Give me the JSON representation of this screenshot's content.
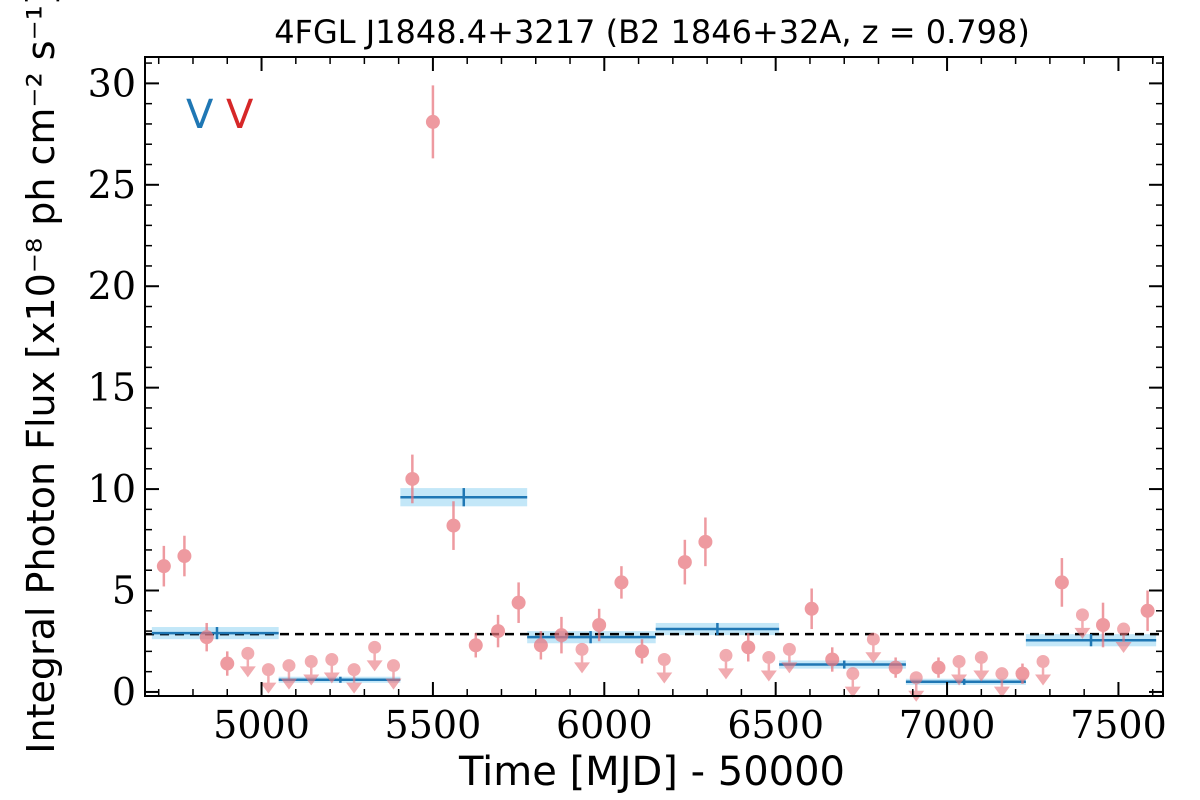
{
  "chart_data": {
    "type": "scatter",
    "title": "4FGL J1848.4+3217 (B2 1846+32A, z = 0.798)",
    "xlabel": "Time [MJD] - 50000",
    "ylabel": "Integral Photon Flux [x10⁻⁸ ph cm⁻² s⁻¹]",
    "xlim": [
      4660,
      7630
    ],
    "ylim": [
      -0.2,
      31.3
    ],
    "xticks": [
      5000,
      5500,
      6000,
      6500,
      7000,
      7500
    ],
    "yticks": [
      0,
      5,
      10,
      15,
      20,
      25,
      30
    ],
    "grid": false,
    "legend": {
      "placement": "top-left",
      "entries": [
        {
          "label": "V",
          "color": "#1f77b4"
        },
        {
          "label": "V",
          "color": "#d62728"
        }
      ]
    },
    "colors": {
      "points": "#e8747c",
      "bins_line": "#1f77b4",
      "bins_band": "#bde4f7",
      "mean_line": "#000000"
    },
    "mean_flux": 2.85,
    "binned_flux": [
      {
        "x_start": 4680,
        "x_end": 5050,
        "x_center": 4870,
        "flux": 2.9,
        "err": 0.3
      },
      {
        "x_start": 5050,
        "x_end": 5405,
        "x_center": 5230,
        "flux": 0.6,
        "err": 0.15
      },
      {
        "x_start": 5405,
        "x_end": 5775,
        "x_center": 5590,
        "flux": 9.6,
        "err": 0.45
      },
      {
        "x_start": 5775,
        "x_end": 6150,
        "x_center": 5960,
        "flux": 2.7,
        "err": 0.3
      },
      {
        "x_start": 6150,
        "x_end": 6510,
        "x_center": 6330,
        "flux": 3.1,
        "err": 0.3
      },
      {
        "x_start": 6510,
        "x_end": 6880,
        "x_center": 6700,
        "flux": 1.35,
        "err": 0.2
      },
      {
        "x_start": 6880,
        "x_end": 7230,
        "x_center": 7050,
        "flux": 0.5,
        "err": 0.15
      },
      {
        "x_start": 7230,
        "x_end": 7610,
        "x_center": 7420,
        "flux": 2.55,
        "err": 0.3
      }
    ],
    "detections": [
      {
        "x": 4715,
        "y": 6.2,
        "err": 1.0
      },
      {
        "x": 4775,
        "y": 6.7,
        "err": 1.0
      },
      {
        "x": 4840,
        "y": 2.7,
        "err": 0.7
      },
      {
        "x": 4900,
        "y": 1.4,
        "err": 0.6
      },
      {
        "x": 5440,
        "y": 10.5,
        "err": 1.2
      },
      {
        "x": 5500,
        "y": 28.1,
        "err": 1.8
      },
      {
        "x": 5560,
        "y": 8.2,
        "err": 1.2
      },
      {
        "x": 5625,
        "y": 2.3,
        "err": 0.6
      },
      {
        "x": 5690,
        "y": 3.0,
        "err": 0.8
      },
      {
        "x": 5750,
        "y": 4.4,
        "err": 1.0
      },
      {
        "x": 5815,
        "y": 2.3,
        "err": 0.7
      },
      {
        "x": 5875,
        "y": 2.8,
        "err": 0.9
      },
      {
        "x": 5985,
        "y": 3.3,
        "err": 0.8
      },
      {
        "x": 6050,
        "y": 5.4,
        "err": 0.8
      },
      {
        "x": 6110,
        "y": 2.0,
        "err": 0.6
      },
      {
        "x": 6235,
        "y": 6.4,
        "err": 1.1
      },
      {
        "x": 6295,
        "y": 7.4,
        "err": 1.2
      },
      {
        "x": 6420,
        "y": 2.2,
        "err": 0.7
      },
      {
        "x": 6605,
        "y": 4.1,
        "err": 1.0
      },
      {
        "x": 6665,
        "y": 1.6,
        "err": 0.6
      },
      {
        "x": 6850,
        "y": 1.2,
        "err": 0.5
      },
      {
        "x": 6975,
        "y": 1.2,
        "err": 0.5
      },
      {
        "x": 7220,
        "y": 0.9,
        "err": 0.5
      },
      {
        "x": 7335,
        "y": 5.4,
        "err": 1.2
      },
      {
        "x": 7455,
        "y": 3.3,
        "err": 1.1
      },
      {
        "x": 7585,
        "y": 4.0,
        "err": 1.0
      }
    ],
    "upper_limits": [
      {
        "x": 4960,
        "y": 1.9
      },
      {
        "x": 5020,
        "y": 1.1
      },
      {
        "x": 5080,
        "y": 1.3
      },
      {
        "x": 5145,
        "y": 1.5
      },
      {
        "x": 5205,
        "y": 1.6
      },
      {
        "x": 5270,
        "y": 1.1
      },
      {
        "x": 5330,
        "y": 2.2
      },
      {
        "x": 5385,
        "y": 1.3
      },
      {
        "x": 5935,
        "y": 2.1
      },
      {
        "x": 6175,
        "y": 1.6
      },
      {
        "x": 6355,
        "y": 1.8
      },
      {
        "x": 6480,
        "y": 1.7
      },
      {
        "x": 6540,
        "y": 2.1
      },
      {
        "x": 6725,
        "y": 0.9
      },
      {
        "x": 6785,
        "y": 2.6
      },
      {
        "x": 6910,
        "y": 0.7
      },
      {
        "x": 7035,
        "y": 1.5
      },
      {
        "x": 7100,
        "y": 1.7
      },
      {
        "x": 7160,
        "y": 0.9
      },
      {
        "x": 7280,
        "y": 1.5
      },
      {
        "x": 7395,
        "y": 3.8
      },
      {
        "x": 7515,
        "y": 3.1
      }
    ]
  }
}
